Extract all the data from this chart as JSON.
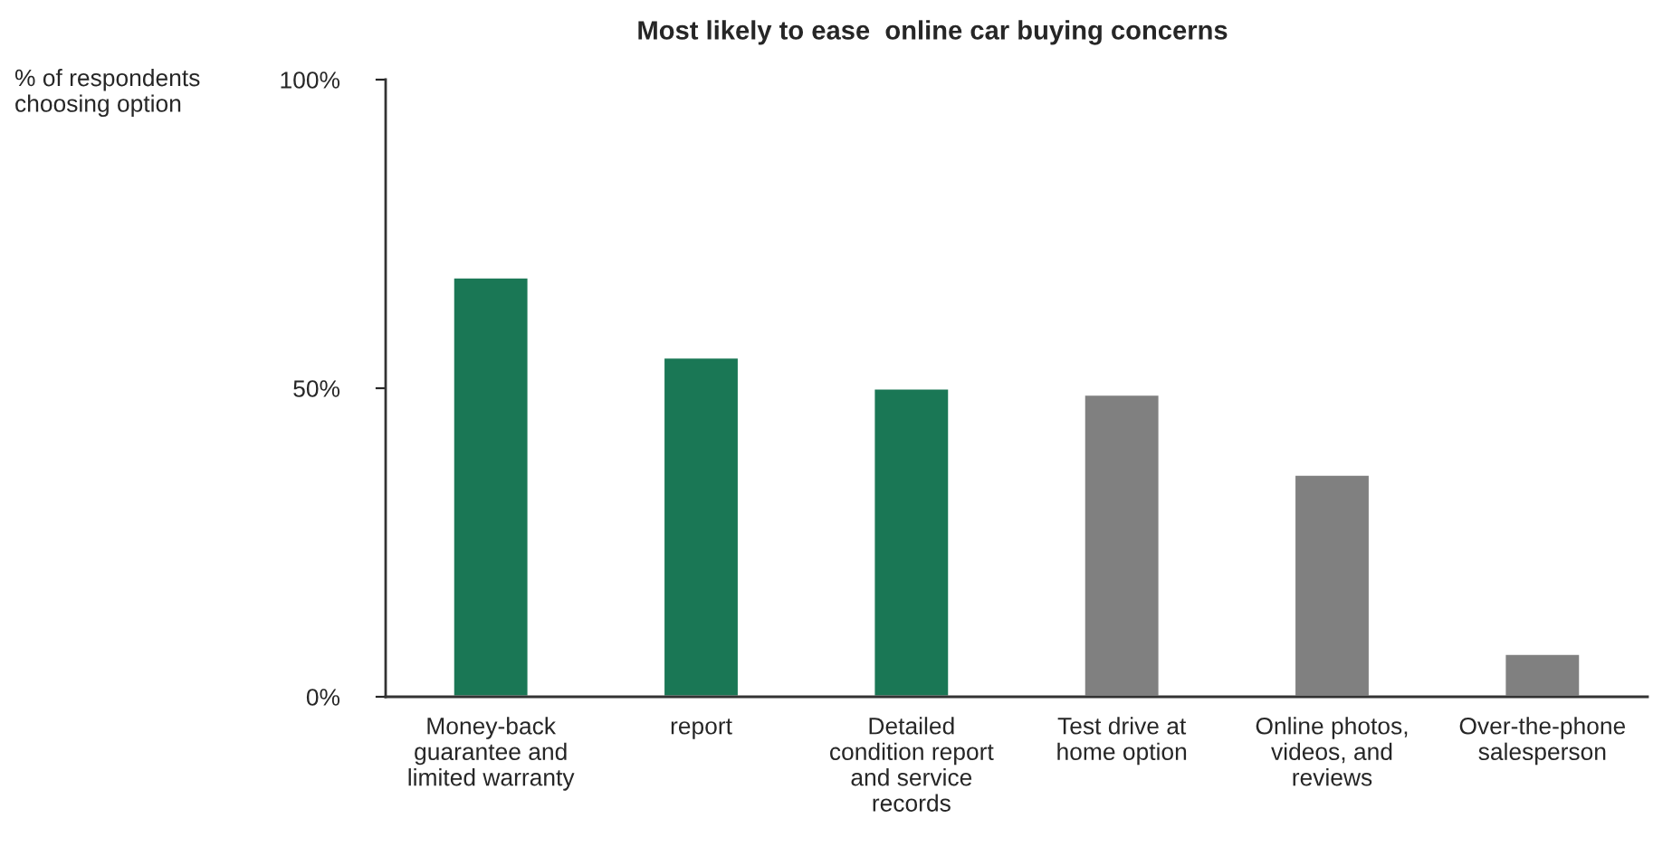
{
  "chart_data": {
    "type": "bar",
    "title": "Most likely to ease  online car buying concerns",
    "ylabel": "% of respondents\nchoosing option",
    "categories": [
      "Money-back\nguarantee and\nlimited warranty",
      "report",
      "Detailed\ncondition report\nand service\nrecords",
      "Test drive at\nhome option",
      "Online photos,\nvideos, and\nreviews",
      "Over-the-phone\nsalesperson"
    ],
    "values": [
      68,
      55,
      50,
      49,
      36,
      7
    ],
    "colors": [
      "#1a7755",
      "#1a7755",
      "#1a7755",
      "#808080",
      "#808080",
      "#808080"
    ],
    "ylim": [
      0,
      100
    ],
    "yticks": [
      {
        "value": 0,
        "label": "0%"
      },
      {
        "value": 50,
        "label": "50%"
      },
      {
        "value": 100,
        "label": "100%"
      }
    ],
    "grid": false,
    "legend": false
  }
}
